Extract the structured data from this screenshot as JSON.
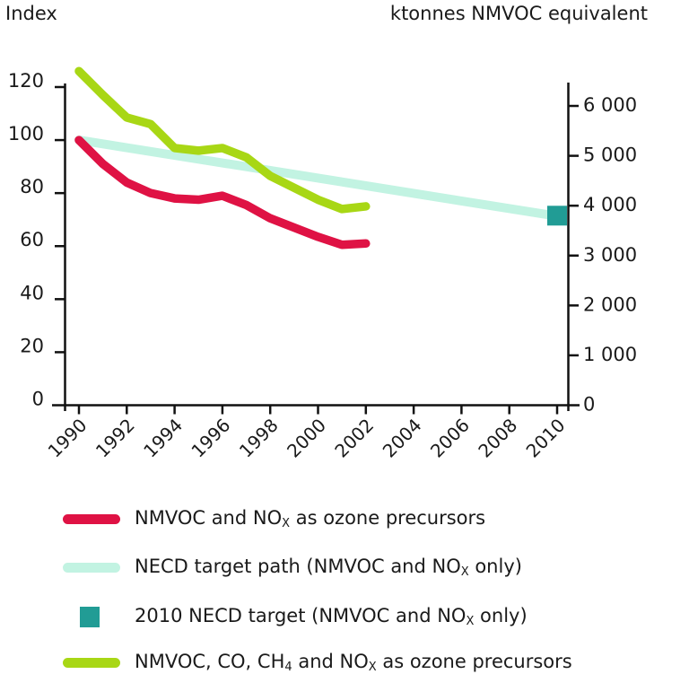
{
  "colors": {
    "nmvoc_nox_line": "#df1244",
    "target_path_line": "#c2f3e2",
    "target_marker": "#219c95",
    "all_precursors_line": "#a8d715",
    "axis": "#111111",
    "text": "#1a1a1a",
    "background": "#ffffff"
  },
  "chart_data": {
    "type": "line",
    "title": "",
    "x_years": [
      1990,
      1991,
      1992,
      1993,
      1994,
      1995,
      1996,
      1997,
      1998,
      1999,
      2000,
      2001,
      2002
    ],
    "series": [
      {
        "id": "nmvoc-nox",
        "name": "NMVOC and NOX as ozone precursors",
        "axis": "left",
        "color": "#df1244",
        "values": [
          100,
          91,
          84,
          80,
          78,
          77.5,
          79,
          75.5,
          70.5,
          67,
          63.5,
          60.5,
          61
        ]
      },
      {
        "id": "all-precursors",
        "name": "NMVOC, CO, CH4 and NOX as ozone precursors",
        "axis": "left",
        "color": "#a8d715",
        "values": [
          126,
          117,
          108.5,
          106,
          97,
          96,
          97,
          93.5,
          86.5,
          82,
          77.5,
          74,
          75
        ]
      }
    ],
    "target_path": {
      "id": "necd-target-path",
      "name": "NECD target path (NMVOC and NOX only)",
      "color": "#c2f3e2",
      "x": [
        1990,
        2010
      ],
      "values": [
        100,
        71.3
      ]
    },
    "target_point": {
      "id": "2010-necd-target",
      "name": "2010 NECD target (NMVOC and NOX only)",
      "color": "#219c95",
      "year": 2010,
      "index_value": 71.3,
      "ktonnes_value": 3800
    },
    "left_axis": {
      "title": "Index",
      "ticks": [
        0,
        20,
        40,
        60,
        80,
        100,
        120
      ],
      "range": [
        0,
        120
      ]
    },
    "right_axis": {
      "title": "ktonnes NMVOC equivalent",
      "tick_values": [
        0,
        1000,
        2000,
        3000,
        4000,
        5000,
        6000
      ],
      "tick_labels": [
        "0",
        "1 000",
        "2 000",
        "3 000",
        "4 000",
        "5 000",
        "6 000"
      ],
      "range": [
        0,
        6000
      ]
    },
    "x_axis": {
      "tick_years": [
        1990,
        1992,
        1994,
        1996,
        1998,
        2000,
        2002,
        2004,
        2006,
        2008,
        2010
      ],
      "range": [
        1990,
        2010
      ]
    },
    "grid": false,
    "legend_position": "bottom"
  },
  "legend": {
    "items": [
      {
        "id": "nmvoc-nox",
        "swatch": "line",
        "color": "#df1244",
        "parts": [
          {
            "text": "NMVOC and NO"
          },
          {
            "text": "X",
            "sub": true
          },
          {
            "text": " as ozone precursors"
          }
        ]
      },
      {
        "id": "necd-target-path",
        "swatch": "line",
        "color": "#c2f3e2",
        "parts": [
          {
            "text": "NECD target path (NMVOC and NO"
          },
          {
            "text": "X",
            "sub": true
          },
          {
            "text": " only)"
          }
        ]
      },
      {
        "id": "2010-necd-target",
        "swatch": "square",
        "color": "#219c95",
        "parts": [
          {
            "text": "2010 NECD target (NMVOC and NO"
          },
          {
            "text": "X",
            "sub": true
          },
          {
            "text": " only)"
          }
        ]
      },
      {
        "id": "nmvoc-co-ch4-nox",
        "swatch": "line",
        "color": "#a8d715",
        "parts": [
          {
            "text": "NMVOC, CO, CH"
          },
          {
            "text": "4",
            "sub": true
          },
          {
            "text": " and NO"
          },
          {
            "text": "X",
            "sub": true
          },
          {
            "text": " as ozone precursors"
          }
        ]
      }
    ]
  }
}
